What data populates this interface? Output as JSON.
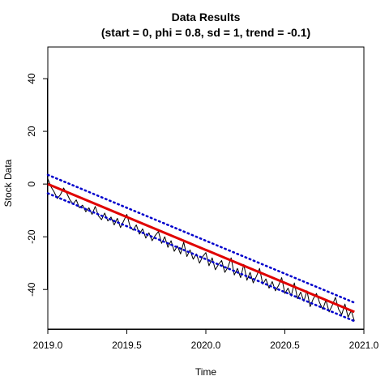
{
  "chart_data": {
    "type": "line",
    "title": "Data Results",
    "subtitle": "(start = 0,  phi = 0.8,  sd = 1,  trend = -0.1)",
    "xlabel": "Time",
    "ylabel": "Stock Data",
    "xlim": [
      2019.0,
      2021.0
    ],
    "ylim": [
      -55,
      52
    ],
    "x_ticks": [
      2019.0,
      2019.5,
      2020.0,
      2020.5,
      2021.0
    ],
    "x_tick_labels": [
      "2019.0",
      "2019.5",
      "2020.0",
      "2020.5",
      "2021.0"
    ],
    "y_ticks": [
      -40,
      -20,
      0,
      20,
      40
    ],
    "y_tick_labels": [
      "-40",
      "-20",
      "0",
      "20",
      "40"
    ],
    "grid": false,
    "x_range": [
      2019.0,
      2020.94
    ],
    "series": [
      {
        "role": "observed",
        "color": "#000000",
        "style": "solid",
        "x": [
          2019.0,
          2019.02,
          2019.04,
          2019.06,
          2019.08,
          2019.1,
          2019.12,
          2019.14,
          2019.16,
          2019.18,
          2019.2,
          2019.22,
          2019.24,
          2019.26,
          2019.28,
          2019.3,
          2019.32,
          2019.34,
          2019.36,
          2019.38,
          2019.4,
          2019.42,
          2019.44,
          2019.46,
          2019.48,
          2019.5,
          2019.52,
          2019.54,
          2019.56,
          2019.58,
          2019.6,
          2019.62,
          2019.64,
          2019.66,
          2019.68,
          2019.7,
          2019.72,
          2019.74,
          2019.76,
          2019.78,
          2019.8,
          2019.82,
          2019.84,
          2019.86,
          2019.88,
          2019.9,
          2019.92,
          2019.94,
          2019.96,
          2019.98,
          2020.0,
          2020.02,
          2020.04,
          2020.06,
          2020.08,
          2020.1,
          2020.12,
          2020.14,
          2020.16,
          2020.18,
          2020.2,
          2020.22,
          2020.24,
          2020.26,
          2020.28,
          2020.3,
          2020.32,
          2020.34,
          2020.36,
          2020.38,
          2020.4,
          2020.42,
          2020.44,
          2020.46,
          2020.48,
          2020.5,
          2020.52,
          2020.54,
          2020.56,
          2020.58,
          2020.6,
          2020.62,
          2020.64,
          2020.66,
          2020.68,
          2020.7,
          2020.72,
          2020.74,
          2020.76,
          2020.78,
          2020.8,
          2020.82,
          2020.84,
          2020.86,
          2020.88,
          2020.9,
          2020.92,
          2020.94
        ],
        "y": [
          2.0,
          -1.0,
          -3.0,
          -5.5,
          -4.0,
          -1.5,
          -3.5,
          -6.0,
          -7.5,
          -6.0,
          -9.0,
          -8.0,
          -10.5,
          -9.0,
          -11.5,
          -8.5,
          -12.0,
          -13.5,
          -11.0,
          -14.0,
          -12.5,
          -15.5,
          -13.0,
          -16.5,
          -14.0,
          -11.5,
          -16.0,
          -17.5,
          -15.5,
          -19.0,
          -17.0,
          -20.5,
          -18.5,
          -21.5,
          -19.5,
          -18.0,
          -22.5,
          -20.0,
          -24.0,
          -21.5,
          -25.5,
          -23.5,
          -26.5,
          -22.0,
          -27.5,
          -25.0,
          -28.5,
          -26.5,
          -30.0,
          -27.5,
          -26.0,
          -31.0,
          -28.0,
          -32.5,
          -30.5,
          -29.0,
          -33.5,
          -31.5,
          -28.0,
          -34.5,
          -32.0,
          -35.5,
          -30.5,
          -36.5,
          -33.5,
          -37.5,
          -35.0,
          -32.0,
          -38.0,
          -36.0,
          -39.5,
          -37.0,
          -40.5,
          -38.5,
          -35.5,
          -41.5,
          -39.5,
          -42.5,
          -37.5,
          -43.5,
          -41.0,
          -44.5,
          -40.5,
          -46.5,
          -43.5,
          -41.5,
          -45.0,
          -47.5,
          -44.0,
          -48.5,
          -46.0,
          -43.0,
          -47.5,
          -49.5,
          -45.5,
          -50.5,
          -48.0,
          -52.0
        ]
      },
      {
        "role": "trend",
        "color": "#e00000",
        "style": "solid",
        "x": [
          2019.0,
          2020.94
        ],
        "y": [
          0.0,
          -48.5
        ]
      },
      {
        "role": "upper-band",
        "color": "#0000cc",
        "style": "dotted",
        "x": [
          2019.0,
          2020.94
        ],
        "y": [
          3.5,
          -45.0
        ]
      },
      {
        "role": "lower-band",
        "color": "#0000cc",
        "style": "dotted",
        "x": [
          2019.0,
          2020.94
        ],
        "y": [
          -3.5,
          -52.0
        ]
      }
    ]
  }
}
